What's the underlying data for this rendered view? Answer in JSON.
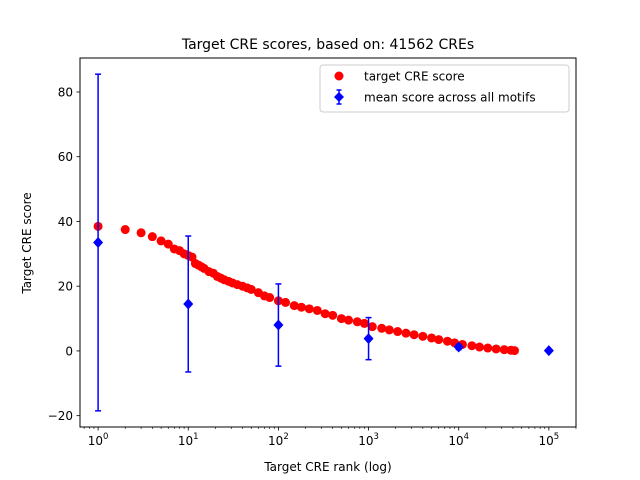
{
  "chart_data": {
    "type": "scatter",
    "title": "Target CRE scores, based on: 41562 CREs",
    "xlabel": "Target CRE rank (log)",
    "ylabel": "Target CRE score",
    "xscale": "log",
    "xlim": [
      0.63,
      200000
    ],
    "ylim": [
      -23.5,
      90.5
    ],
    "x_ticks": [
      {
        "value": 1,
        "base": "10",
        "exp": "0"
      },
      {
        "value": 10,
        "base": "10",
        "exp": "1"
      },
      {
        "value": 100,
        "base": "10",
        "exp": "2"
      },
      {
        "value": 1000,
        "base": "10",
        "exp": "3"
      },
      {
        "value": 10000,
        "base": "10",
        "exp": "4"
      },
      {
        "value": 100000,
        "base": "10",
        "exp": "5"
      }
    ],
    "y_ticks": [
      {
        "value": -20,
        "label": "−20"
      },
      {
        "value": 0,
        "label": "0"
      },
      {
        "value": 20,
        "label": "20"
      },
      {
        "value": 40,
        "label": "40"
      },
      {
        "value": 60,
        "label": "60"
      },
      {
        "value": 80,
        "label": "80"
      }
    ],
    "series": [
      {
        "name": "target CRE score",
        "kind": "points",
        "color": "#ff0000",
        "marker": "circle",
        "x": [
          1,
          2,
          3,
          4,
          5,
          6,
          7,
          8,
          9,
          10,
          11,
          12,
          13,
          14,
          15,
          17,
          19,
          21,
          23,
          25,
          28,
          31,
          35,
          40,
          45,
          50,
          60,
          70,
          80,
          100,
          120,
          150,
          180,
          220,
          270,
          330,
          400,
          500,
          600,
          750,
          900,
          1100,
          1400,
          1700,
          2100,
          2600,
          3200,
          4000,
          5000,
          6000,
          7500,
          9000,
          11000,
          14000,
          17000,
          21000,
          26000,
          32000,
          38000,
          41562
        ],
        "y": [
          38.5,
          37.5,
          36.5,
          35.3,
          34.0,
          33.0,
          31.5,
          31.0,
          30.0,
          29.5,
          29.0,
          27.0,
          26.5,
          26.0,
          25.5,
          24.5,
          24.0,
          23.0,
          22.5,
          22.0,
          21.5,
          21.0,
          20.5,
          20.0,
          19.5,
          19.0,
          18.0,
          17.0,
          16.5,
          15.5,
          15.0,
          14.0,
          13.5,
          13.0,
          12.5,
          11.5,
          11.0,
          10.0,
          9.5,
          9.0,
          8.5,
          7.5,
          7.0,
          6.5,
          6.0,
          5.5,
          5.0,
          4.5,
          4.0,
          3.5,
          3.0,
          2.5,
          2.0,
          1.6,
          1.2,
          0.9,
          0.6,
          0.4,
          0.2,
          0.1
        ]
      },
      {
        "name": "mean score across all motifs",
        "kind": "errorbar",
        "color": "#0000ff",
        "marker": "diamond",
        "x": [
          1,
          10,
          100,
          1000,
          10000,
          100000
        ],
        "y": [
          33.5,
          14.5,
          8.0,
          3.8,
          1.2,
          0.1
        ],
        "yerr": [
          52.0,
          21.0,
          12.7,
          6.5,
          0.8,
          0.0
        ]
      }
    ],
    "legend": {
      "position": "upper right",
      "entries": [
        "target CRE score",
        "mean score across all motifs"
      ]
    }
  }
}
